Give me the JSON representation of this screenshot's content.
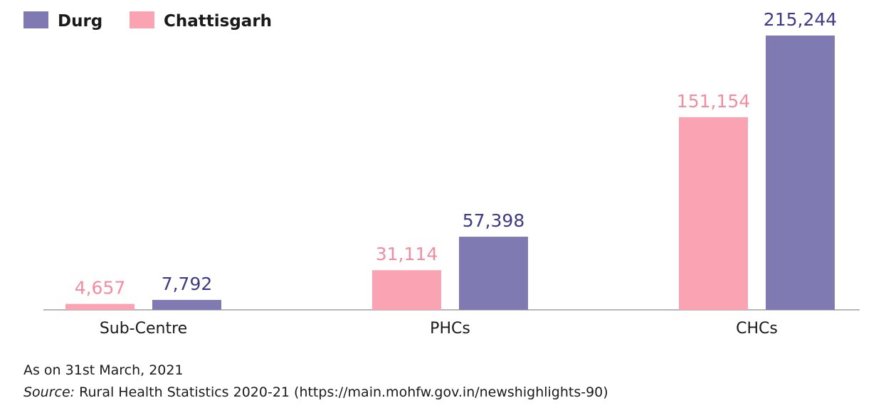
{
  "chart_data": {
    "type": "bar",
    "categories": [
      "Sub-Centre",
      "PHCs",
      "CHCs"
    ],
    "series": [
      {
        "name": "Chattisgarh",
        "color": "#f9a3b3",
        "label_color": "#f28ca0",
        "values": [
          4657,
          31114,
          151154
        ],
        "labels": [
          "4,657",
          "31,114",
          "151,154"
        ]
      },
      {
        "name": "Durg",
        "color": "#7f7bb2",
        "label_color": "#3f3a86",
        "values": [
          7792,
          57398,
          215244
        ],
        "labels": [
          "7,792",
          "57,398",
          "215,244"
        ]
      }
    ],
    "legend": {
      "position": "top-left",
      "order": [
        "Durg",
        "Chattisgarh"
      ]
    },
    "ylim": [
      0,
      215244
    ],
    "grid": false,
    "title": "",
    "xlabel": "",
    "ylabel": ""
  },
  "footnote": {
    "as_on": "As on 31st March, 2021",
    "source_label": "Source:",
    "source_text": " Rural Health Statistics 2020-21 (https://main.mohfw.gov.in/newshighlights-90)"
  }
}
